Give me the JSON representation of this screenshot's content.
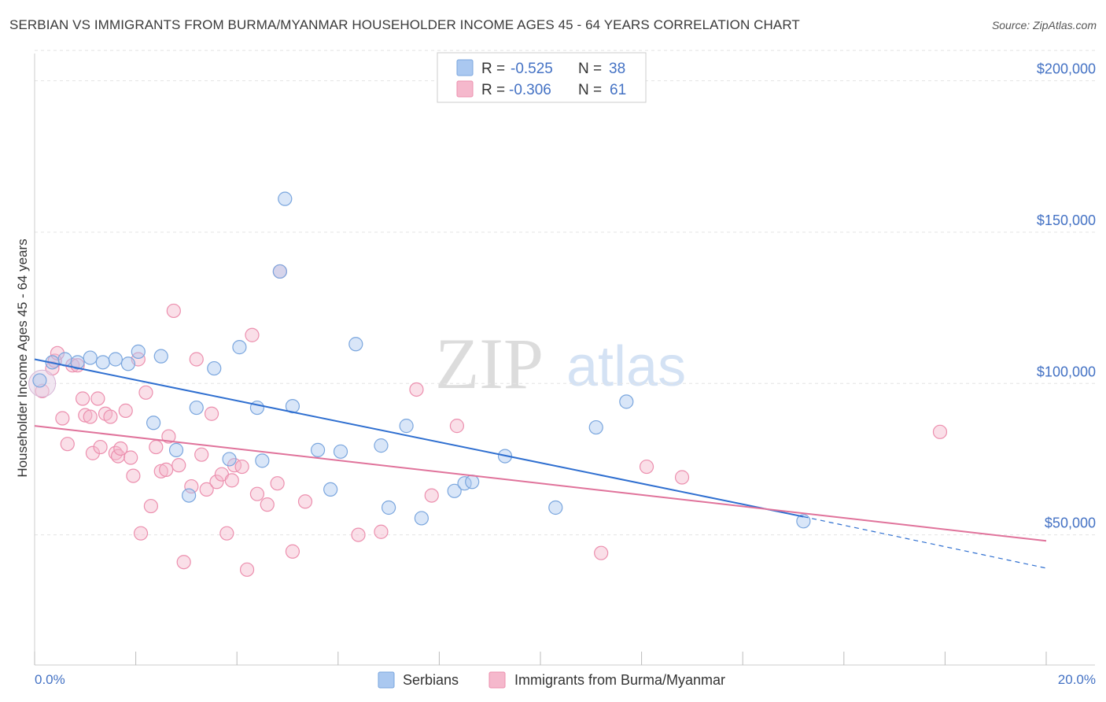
{
  "title": "SERBIAN VS IMMIGRANTS FROM BURMA/MYANMAR HOUSEHOLDER INCOME AGES 45 - 64 YEARS CORRELATION CHART",
  "source": "Source: ZipAtlas.com",
  "watermark": {
    "zip": "ZIP",
    "atlas": "atlas"
  },
  "colors": {
    "blue_fill": "#aac8f0",
    "blue_stroke": "#7aa6de",
    "blue_line": "#2f6fd0",
    "pink_fill": "#f5b8cc",
    "pink_stroke": "#ec8fae",
    "pink_line": "#e0739b",
    "accent_text": "#4472c4"
  },
  "stats": [
    {
      "r_label": "R =",
      "r_value": "-0.525",
      "n_label": "N =",
      "n_value": "38"
    },
    {
      "r_label": "R =",
      "r_value": "-0.306",
      "n_label": "N =",
      "n_value": "61"
    }
  ],
  "chart_data": {
    "type": "scatter",
    "title": "SERBIAN VS IMMIGRANTS FROM BURMA/MYANMAR HOUSEHOLDER INCOME AGES 45 - 64 YEARS CORRELATION CHART",
    "xlabel": "",
    "ylabel": "Householder Income Ages 45 - 64 years",
    "xlim": [
      0,
      20
    ],
    "ylim": [
      7000,
      209000
    ],
    "x_tick_labels": [
      "0.0%",
      "20.0%"
    ],
    "y_ticks": [
      50000,
      100000,
      150000,
      200000
    ],
    "y_tick_labels": [
      "$50,000",
      "$100,000",
      "$150,000",
      "$200,000"
    ],
    "grid": true,
    "legend": [
      "Serbians",
      "Immigrants from Burma/Myanmar"
    ],
    "series": [
      {
        "name": "Serbians",
        "r": -0.525,
        "n": 38,
        "trend": {
          "x0": 0,
          "y0": 108000,
          "x1": 15.2,
          "y1": 56000,
          "dash_x1": 20,
          "dash_y1": 39000
        },
        "points": [
          [
            0.1,
            101000
          ],
          [
            0.35,
            107000
          ],
          [
            0.6,
            108000
          ],
          [
            0.85,
            107000
          ],
          [
            1.1,
            108500
          ],
          [
            1.35,
            107000
          ],
          [
            1.6,
            108000
          ],
          [
            1.85,
            106500
          ],
          [
            2.05,
            110500
          ],
          [
            2.5,
            109000
          ],
          [
            2.35,
            87000
          ],
          [
            2.8,
            78000
          ],
          [
            3.05,
            63000
          ],
          [
            3.2,
            92000
          ],
          [
            3.55,
            105000
          ],
          [
            3.85,
            75000
          ],
          [
            4.05,
            112000
          ],
          [
            4.4,
            92000
          ],
          [
            4.5,
            74500
          ],
          [
            4.85,
            137000
          ],
          [
            4.95,
            161000
          ],
          [
            5.1,
            92500
          ],
          [
            5.6,
            78000
          ],
          [
            5.85,
            65000
          ],
          [
            6.05,
            77500
          ],
          [
            6.35,
            113000
          ],
          [
            6.85,
            79500
          ],
          [
            7.0,
            59000
          ],
          [
            7.35,
            86000
          ],
          [
            7.65,
            55500
          ],
          [
            8.3,
            64500
          ],
          [
            8.5,
            67000
          ],
          [
            8.65,
            67500
          ],
          [
            9.3,
            76000
          ],
          [
            10.3,
            59000
          ],
          [
            11.1,
            85500
          ],
          [
            11.7,
            94000
          ],
          [
            15.2,
            54500
          ]
        ]
      },
      {
        "name": "Immigrants from Burma/Myanmar",
        "r": -0.306,
        "n": 61,
        "trend": {
          "x0": 0,
          "y0": 86000,
          "x1": 20,
          "y1": 48000
        },
        "points": [
          [
            0.15,
            97500
          ],
          [
            0.35,
            105000
          ],
          [
            0.4,
            107500
          ],
          [
            0.45,
            110000
          ],
          [
            0.55,
            88500
          ],
          [
            0.65,
            80000
          ],
          [
            0.75,
            106000
          ],
          [
            0.85,
            106000
          ],
          [
            0.95,
            95000
          ],
          [
            1.0,
            89500
          ],
          [
            1.1,
            89000
          ],
          [
            1.15,
            77000
          ],
          [
            1.25,
            95000
          ],
          [
            1.3,
            79000
          ],
          [
            1.4,
            90000
          ],
          [
            1.5,
            89000
          ],
          [
            1.6,
            77000
          ],
          [
            1.65,
            76000
          ],
          [
            1.7,
            78500
          ],
          [
            1.8,
            91000
          ],
          [
            1.9,
            75500
          ],
          [
            1.95,
            69500
          ],
          [
            2.05,
            108000
          ],
          [
            2.1,
            50500
          ],
          [
            2.2,
            97000
          ],
          [
            2.3,
            59500
          ],
          [
            2.4,
            79000
          ],
          [
            2.5,
            71000
          ],
          [
            2.6,
            71500
          ],
          [
            2.65,
            82500
          ],
          [
            2.75,
            124000
          ],
          [
            2.85,
            73000
          ],
          [
            2.95,
            41000
          ],
          [
            3.1,
            66000
          ],
          [
            3.2,
            108000
          ],
          [
            3.3,
            76500
          ],
          [
            3.4,
            65000
          ],
          [
            3.5,
            90000
          ],
          [
            3.6,
            67500
          ],
          [
            3.7,
            70000
          ],
          [
            3.8,
            50500
          ],
          [
            3.9,
            68000
          ],
          [
            3.95,
            73000
          ],
          [
            4.1,
            72500
          ],
          [
            4.2,
            38500
          ],
          [
            4.3,
            116000
          ],
          [
            4.4,
            63500
          ],
          [
            4.6,
            60000
          ],
          [
            4.8,
            67000
          ],
          [
            4.85,
            137000
          ],
          [
            5.1,
            44500
          ],
          [
            5.35,
            61000
          ],
          [
            6.4,
            50000
          ],
          [
            6.85,
            51000
          ],
          [
            7.55,
            98000
          ],
          [
            7.85,
            63000
          ],
          [
            8.35,
            86000
          ],
          [
            11.2,
            44000
          ],
          [
            12.1,
            72500
          ],
          [
            12.8,
            69000
          ],
          [
            17.9,
            84000
          ]
        ]
      }
    ]
  }
}
